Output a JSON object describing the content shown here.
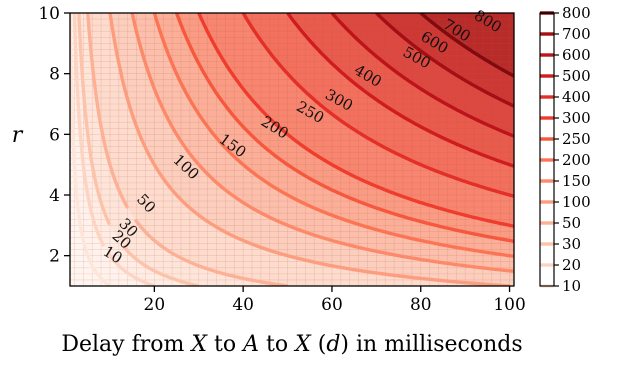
{
  "chart_data": {
    "type": "heatmap",
    "title": "",
    "xlabel": "Delay from X to A to X (d) in milliseconds",
    "xlabel_parts": [
      {
        "text": "Delay from ",
        "italic": false
      },
      {
        "text": "X",
        "italic": true
      },
      {
        "text": " to ",
        "italic": false
      },
      {
        "text": "A",
        "italic": true
      },
      {
        "text": " to ",
        "italic": false
      },
      {
        "text": "X",
        "italic": true
      },
      {
        "text": " (",
        "italic": false
      },
      {
        "text": "d",
        "italic": true
      },
      {
        "text": ") in milliseconds",
        "italic": false
      }
    ],
    "ylabel": "r",
    "xlim": [
      1,
      101
    ],
    "ylim": [
      1,
      10
    ],
    "xticks": [
      20,
      40,
      60,
      80,
      100
    ],
    "yticks": [
      2,
      4,
      6,
      8,
      10
    ],
    "grid": true,
    "colormap": "Reds",
    "function": "z = d * r",
    "contour_levels": [
      10,
      20,
      30,
      50,
      100,
      150,
      200,
      250,
      300,
      400,
      500,
      600,
      700,
      800
    ],
    "contour_labels": [
      {
        "level": 10,
        "x": 10.5,
        "y": 2.0,
        "text": "10"
      },
      {
        "level": 20,
        "x": 12.5,
        "y": 2.5,
        "text": "20"
      },
      {
        "level": 30,
        "x": 14.0,
        "y": 2.9,
        "text": "30"
      },
      {
        "level": 50,
        "x": 18.0,
        "y": 3.7,
        "text": "50"
      },
      {
        "level": 100,
        "x": 27.0,
        "y": 4.9,
        "text": "100"
      },
      {
        "level": 150,
        "x": 37.5,
        "y": 5.6,
        "text": "150"
      },
      {
        "level": 200,
        "x": 47.0,
        "y": 6.2,
        "text": "200"
      },
      {
        "level": 250,
        "x": 55.0,
        "y": 6.7,
        "text": "250"
      },
      {
        "level": 300,
        "x": 61.5,
        "y": 7.1,
        "text": "300"
      },
      {
        "level": 400,
        "x": 68.0,
        "y": 7.9,
        "text": "400"
      },
      {
        "level": 500,
        "x": 79.0,
        "y": 8.5,
        "text": "500"
      },
      {
        "level": 600,
        "x": 83.0,
        "y": 9.0,
        "text": "600"
      },
      {
        "level": 700,
        "x": 88.0,
        "y": 9.4,
        "text": "700"
      },
      {
        "level": 800,
        "x": 95.0,
        "y": 9.7,
        "text": "800"
      }
    ],
    "colorbar": {
      "ticks": [
        "10",
        "20",
        "30",
        "50",
        "100",
        "150",
        "200",
        "250",
        "300",
        "400",
        "500",
        "600",
        "700",
        "800"
      ],
      "colors": [
        "#fee5d9",
        "#fdd4c2",
        "#fcc3ab",
        "#fcb095",
        "#fc9d7f",
        "#fc8a6a",
        "#fb7555",
        "#f6583e",
        "#ef3c2c",
        "#e32f27",
        "#cf1c1f",
        "#bc141a",
        "#a30f15",
        "#800a0f"
      ]
    }
  }
}
